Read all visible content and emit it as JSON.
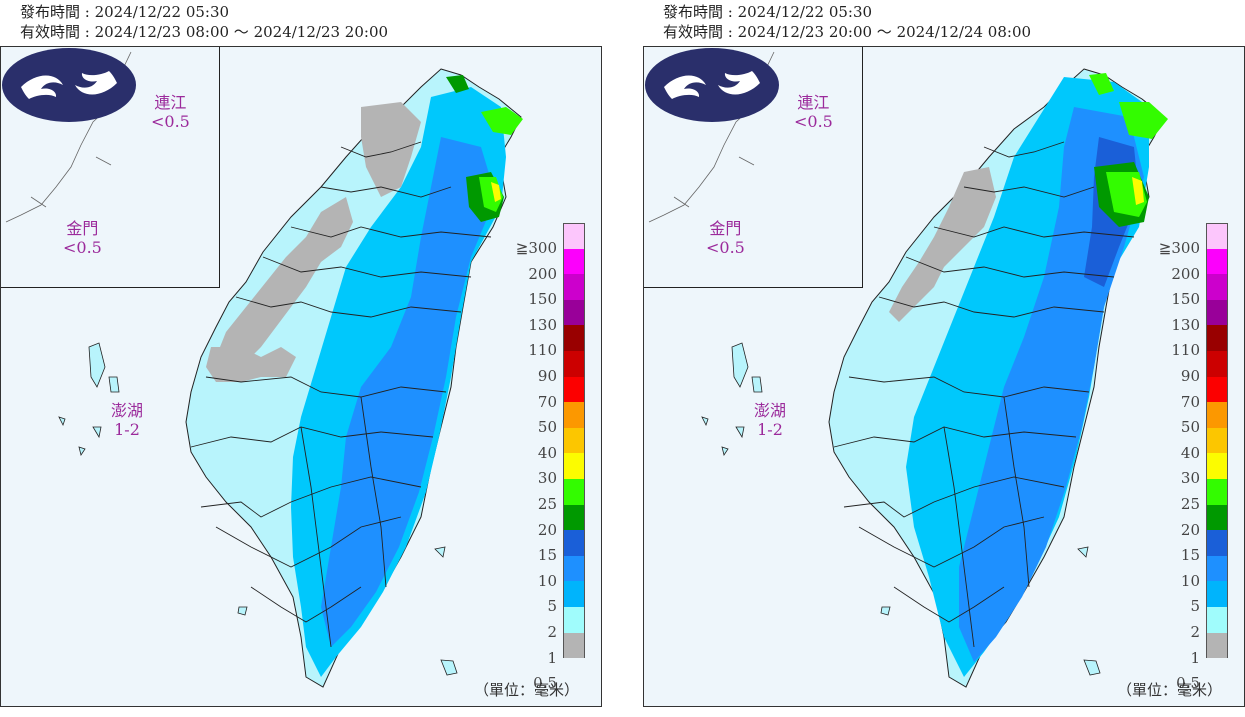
{
  "panels": [
    {
      "issue_time": "發布時間 : 2024/12/22 05:30",
      "valid_time": "有效時間 : 2024/12/23 08:00 ～ 2024/12/23 20:00",
      "matsu": {
        "name": "連江",
        "value": "<0.5"
      },
      "kinmen": {
        "name": "金門",
        "value": "<0.5"
      },
      "penghu": {
        "name": "澎湖",
        "value": "1-2"
      }
    },
    {
      "issue_time": "發布時間 : 2024/12/22 05:30",
      "valid_time": "有效時間 : 2024/12/23 20:00 ～ 2024/12/24 08:00",
      "matsu": {
        "name": "連江",
        "value": "<0.5"
      },
      "kinmen": {
        "name": "金門",
        "value": "<0.5"
      },
      "penghu": {
        "name": "澎湖",
        "value": "1-2"
      }
    }
  ],
  "legend": [
    {
      "label": "≧300",
      "color": "#fcc6fc"
    },
    {
      "label": "200",
      "color": "#fc00fc"
    },
    {
      "label": "150",
      "color": "#cc00cc"
    },
    {
      "label": "130",
      "color": "#990099"
    },
    {
      "label": "110",
      "color": "#990000"
    },
    {
      "label": "90",
      "color": "#cc0000"
    },
    {
      "label": "70",
      "color": "#fc0000"
    },
    {
      "label": "50",
      "color": "#fc9800"
    },
    {
      "label": "40",
      "color": "#fcc600"
    },
    {
      "label": "30",
      "color": "#fcfc00"
    },
    {
      "label": "25",
      "color": "#33fc00"
    },
    {
      "label": "20",
      "color": "#009900"
    },
    {
      "label": "15",
      "color": "#1a5fd8"
    },
    {
      "label": "10",
      "color": "#1e90ff"
    },
    {
      "label": "5",
      "color": "#00b4fc"
    },
    {
      "label": "2",
      "color": "#a0fcfc"
    },
    {
      "label": "1",
      "color": "#b4b4b4"
    },
    {
      "label": "0.5",
      "color": ""
    }
  ],
  "unit": "（單位：毫米）",
  "colors": {
    "background": "#eef6fb",
    "rain_lt1": "#b4b4b4",
    "rain_1_2": "#b8f4fc",
    "rain_2_5": "#00c8fc",
    "rain_5_10": "#1e90ff",
    "rain_10_15": "#1a5fd8",
    "rain_20_25": "#009900",
    "rain_25_30": "#33fc00",
    "rain_30_40": "#fcfc00",
    "label_purple": "#9b2a9b",
    "logo_navy": "#2a2f6b"
  }
}
